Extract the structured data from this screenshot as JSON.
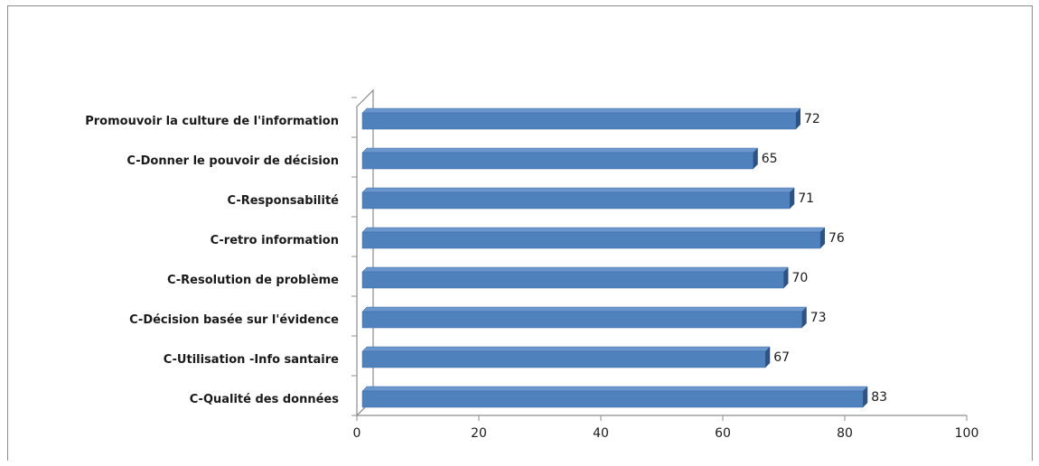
{
  "chart_data": {
    "type": "bar",
    "orientation": "horizontal",
    "style": "3d",
    "categories": [
      "Promouvoir la culture de l'information",
      "C-Donner le pouvoir de décision",
      "C-Responsabilité",
      "C-retro information",
      "C-Resolution de problème",
      "C-Décision basée sur l'évidence",
      "C-Utilisation -Info santaire",
      "C-Qualité des données"
    ],
    "values": [
      72,
      65,
      71,
      76,
      70,
      73,
      67,
      83
    ],
    "xlim": [
      0,
      100
    ],
    "xticks": [
      0,
      20,
      40,
      60,
      80,
      100
    ],
    "title": "",
    "xlabel": "",
    "ylabel": "",
    "grid": false,
    "colors": {
      "bar_front": "#4f81bd",
      "bar_top": "#6b97cc",
      "bar_side": "#2d5283",
      "axis": "#8c8c8c"
    }
  }
}
